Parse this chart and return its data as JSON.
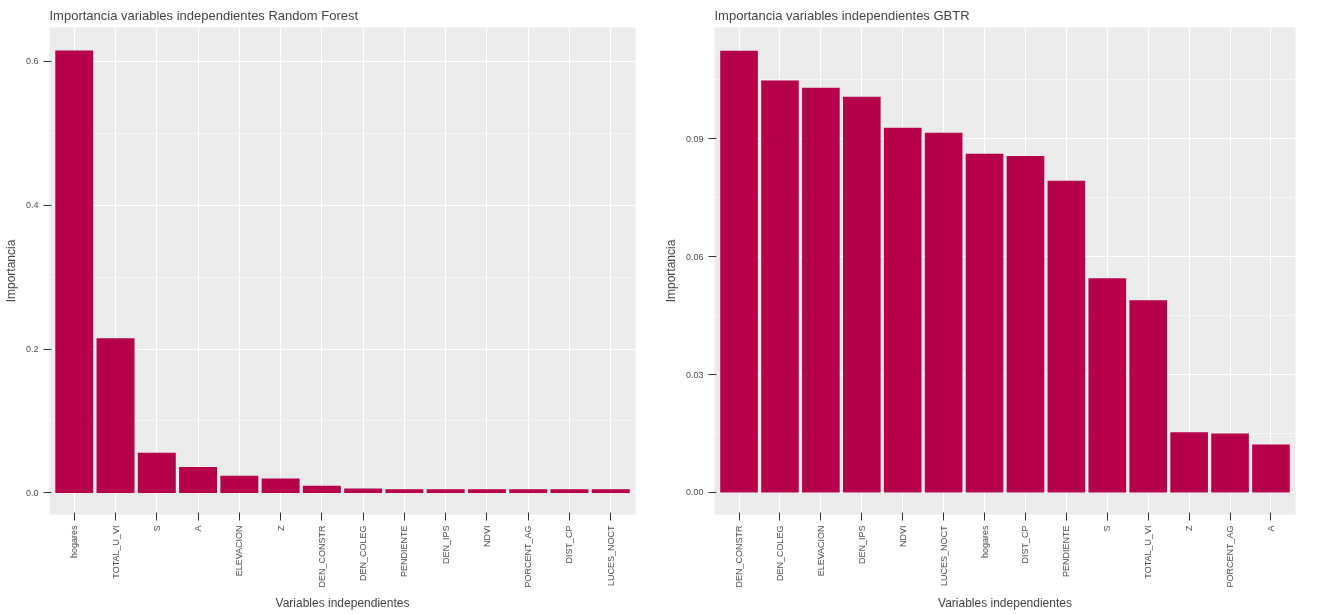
{
  "chart_data": [
    {
      "type": "bar",
      "title": "Importancia variables independientes Random Forest",
      "xlabel": "Variables independientes",
      "ylabel": "Importancia",
      "categories": [
        "hogares",
        "TOTAL_U_VI",
        "S",
        "A",
        "ELEVACION",
        "Z",
        "DEN_CONSTR",
        "DEN_COLEG",
        "PENDIENTE",
        "DEN_IPS",
        "NDVI",
        "PORCENT_AG",
        "DIST_CP",
        "LUCES_NOCT"
      ],
      "values": [
        0.615,
        0.215,
        0.056,
        0.036,
        0.024,
        0.02,
        0.01,
        0.006,
        0.005,
        0.005,
        0.005,
        0.005,
        0.005,
        0.005
      ],
      "color": "#b5004a",
      "ylim": [
        -0.03,
        0.647
      ],
      "yticks": [
        {
          "value": 0,
          "label": "0.0"
        },
        {
          "value": 0.2,
          "label": "0.2"
        },
        {
          "value": 0.4,
          "label": "0.4"
        },
        {
          "value": 0.6,
          "label": "0.6"
        }
      ],
      "grid": true
    },
    {
      "type": "bar",
      "title": "Importancia variables independientes GBTR",
      "xlabel": "Variables independientes",
      "ylabel": "Importancia",
      "categories": [
        "DEN_CONSTR",
        "DEN_COLEG",
        "ELEVACION",
        "DEN_IPS",
        "NDVI",
        "LUCES_NOCT",
        "hogares",
        "DIST_CP",
        "PENDIENTE",
        "S",
        "TOTAL_U_VI",
        "Z",
        "PORCENT_AG",
        "A"
      ],
      "values": [
        0.1124,
        0.1048,
        0.103,
        0.1007,
        0.0928,
        0.0915,
        0.0862,
        0.0856,
        0.0793,
        0.0545,
        0.0489,
        0.0153,
        0.015,
        0.0122
      ],
      "color": "#b5004a",
      "ylim": [
        -0.0056,
        0.1183
      ],
      "yticks": [
        {
          "value": 0,
          "label": "0.00"
        },
        {
          "value": 0.03,
          "label": "0.03"
        },
        {
          "value": 0.06,
          "label": "0.06"
        },
        {
          "value": 0.09,
          "label": "0.09"
        }
      ],
      "grid": true
    }
  ]
}
